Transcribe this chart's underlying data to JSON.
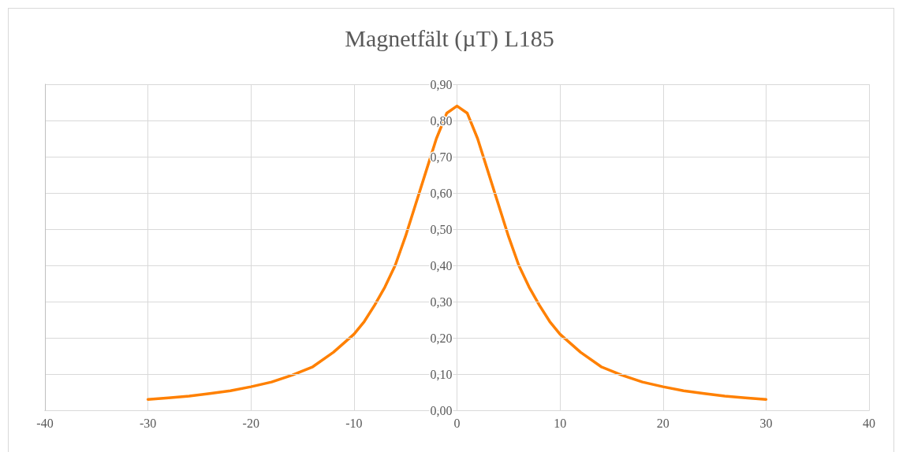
{
  "chart_data": {
    "type": "line",
    "title": "Magnetfält (µT) L185",
    "x": [
      -30,
      -28,
      -26,
      -24,
      -22,
      -20,
      -18,
      -16,
      -14,
      -12,
      -10,
      -9,
      -8,
      -7,
      -6,
      -5,
      -4,
      -3,
      -2,
      -1,
      0,
      1,
      2,
      3,
      4,
      5,
      6,
      7,
      8,
      9,
      10,
      12,
      14,
      16,
      18,
      20,
      22,
      24,
      26,
      28,
      30
    ],
    "values": [
      0.03,
      0.034,
      0.039,
      0.046,
      0.054,
      0.065,
      0.078,
      0.097,
      0.12,
      0.16,
      0.21,
      0.245,
      0.29,
      0.34,
      0.4,
      0.48,
      0.57,
      0.66,
      0.75,
      0.82,
      0.84,
      0.82,
      0.75,
      0.66,
      0.57,
      0.48,
      0.4,
      0.34,
      0.29,
      0.245,
      0.21,
      0.16,
      0.12,
      0.097,
      0.078,
      0.065,
      0.054,
      0.046,
      0.039,
      0.034,
      0.03
    ],
    "color": "#ff8000",
    "xlim": [
      -40,
      40
    ],
    "xticks": [
      -40,
      -30,
      -20,
      -10,
      0,
      10,
      20,
      30,
      40
    ],
    "ylim": [
      0,
      0.9
    ],
    "yticks": [
      {
        "value": 0,
        "label": "0,00"
      },
      {
        "value": 0.1,
        "label": "0,10"
      },
      {
        "value": 0.2,
        "label": "0,20"
      },
      {
        "value": 0.3,
        "label": "0,30"
      },
      {
        "value": 0.4,
        "label": "0,40"
      },
      {
        "value": 0.5,
        "label": "0,50"
      },
      {
        "value": 0.6,
        "label": "0,60"
      },
      {
        "value": 0.7,
        "label": "0,70"
      },
      {
        "value": 0.8,
        "label": "0,80"
      },
      {
        "value": 0.9,
        "label": "0,90"
      }
    ],
    "grid": true,
    "marker": "none",
    "line_style": "solid"
  }
}
